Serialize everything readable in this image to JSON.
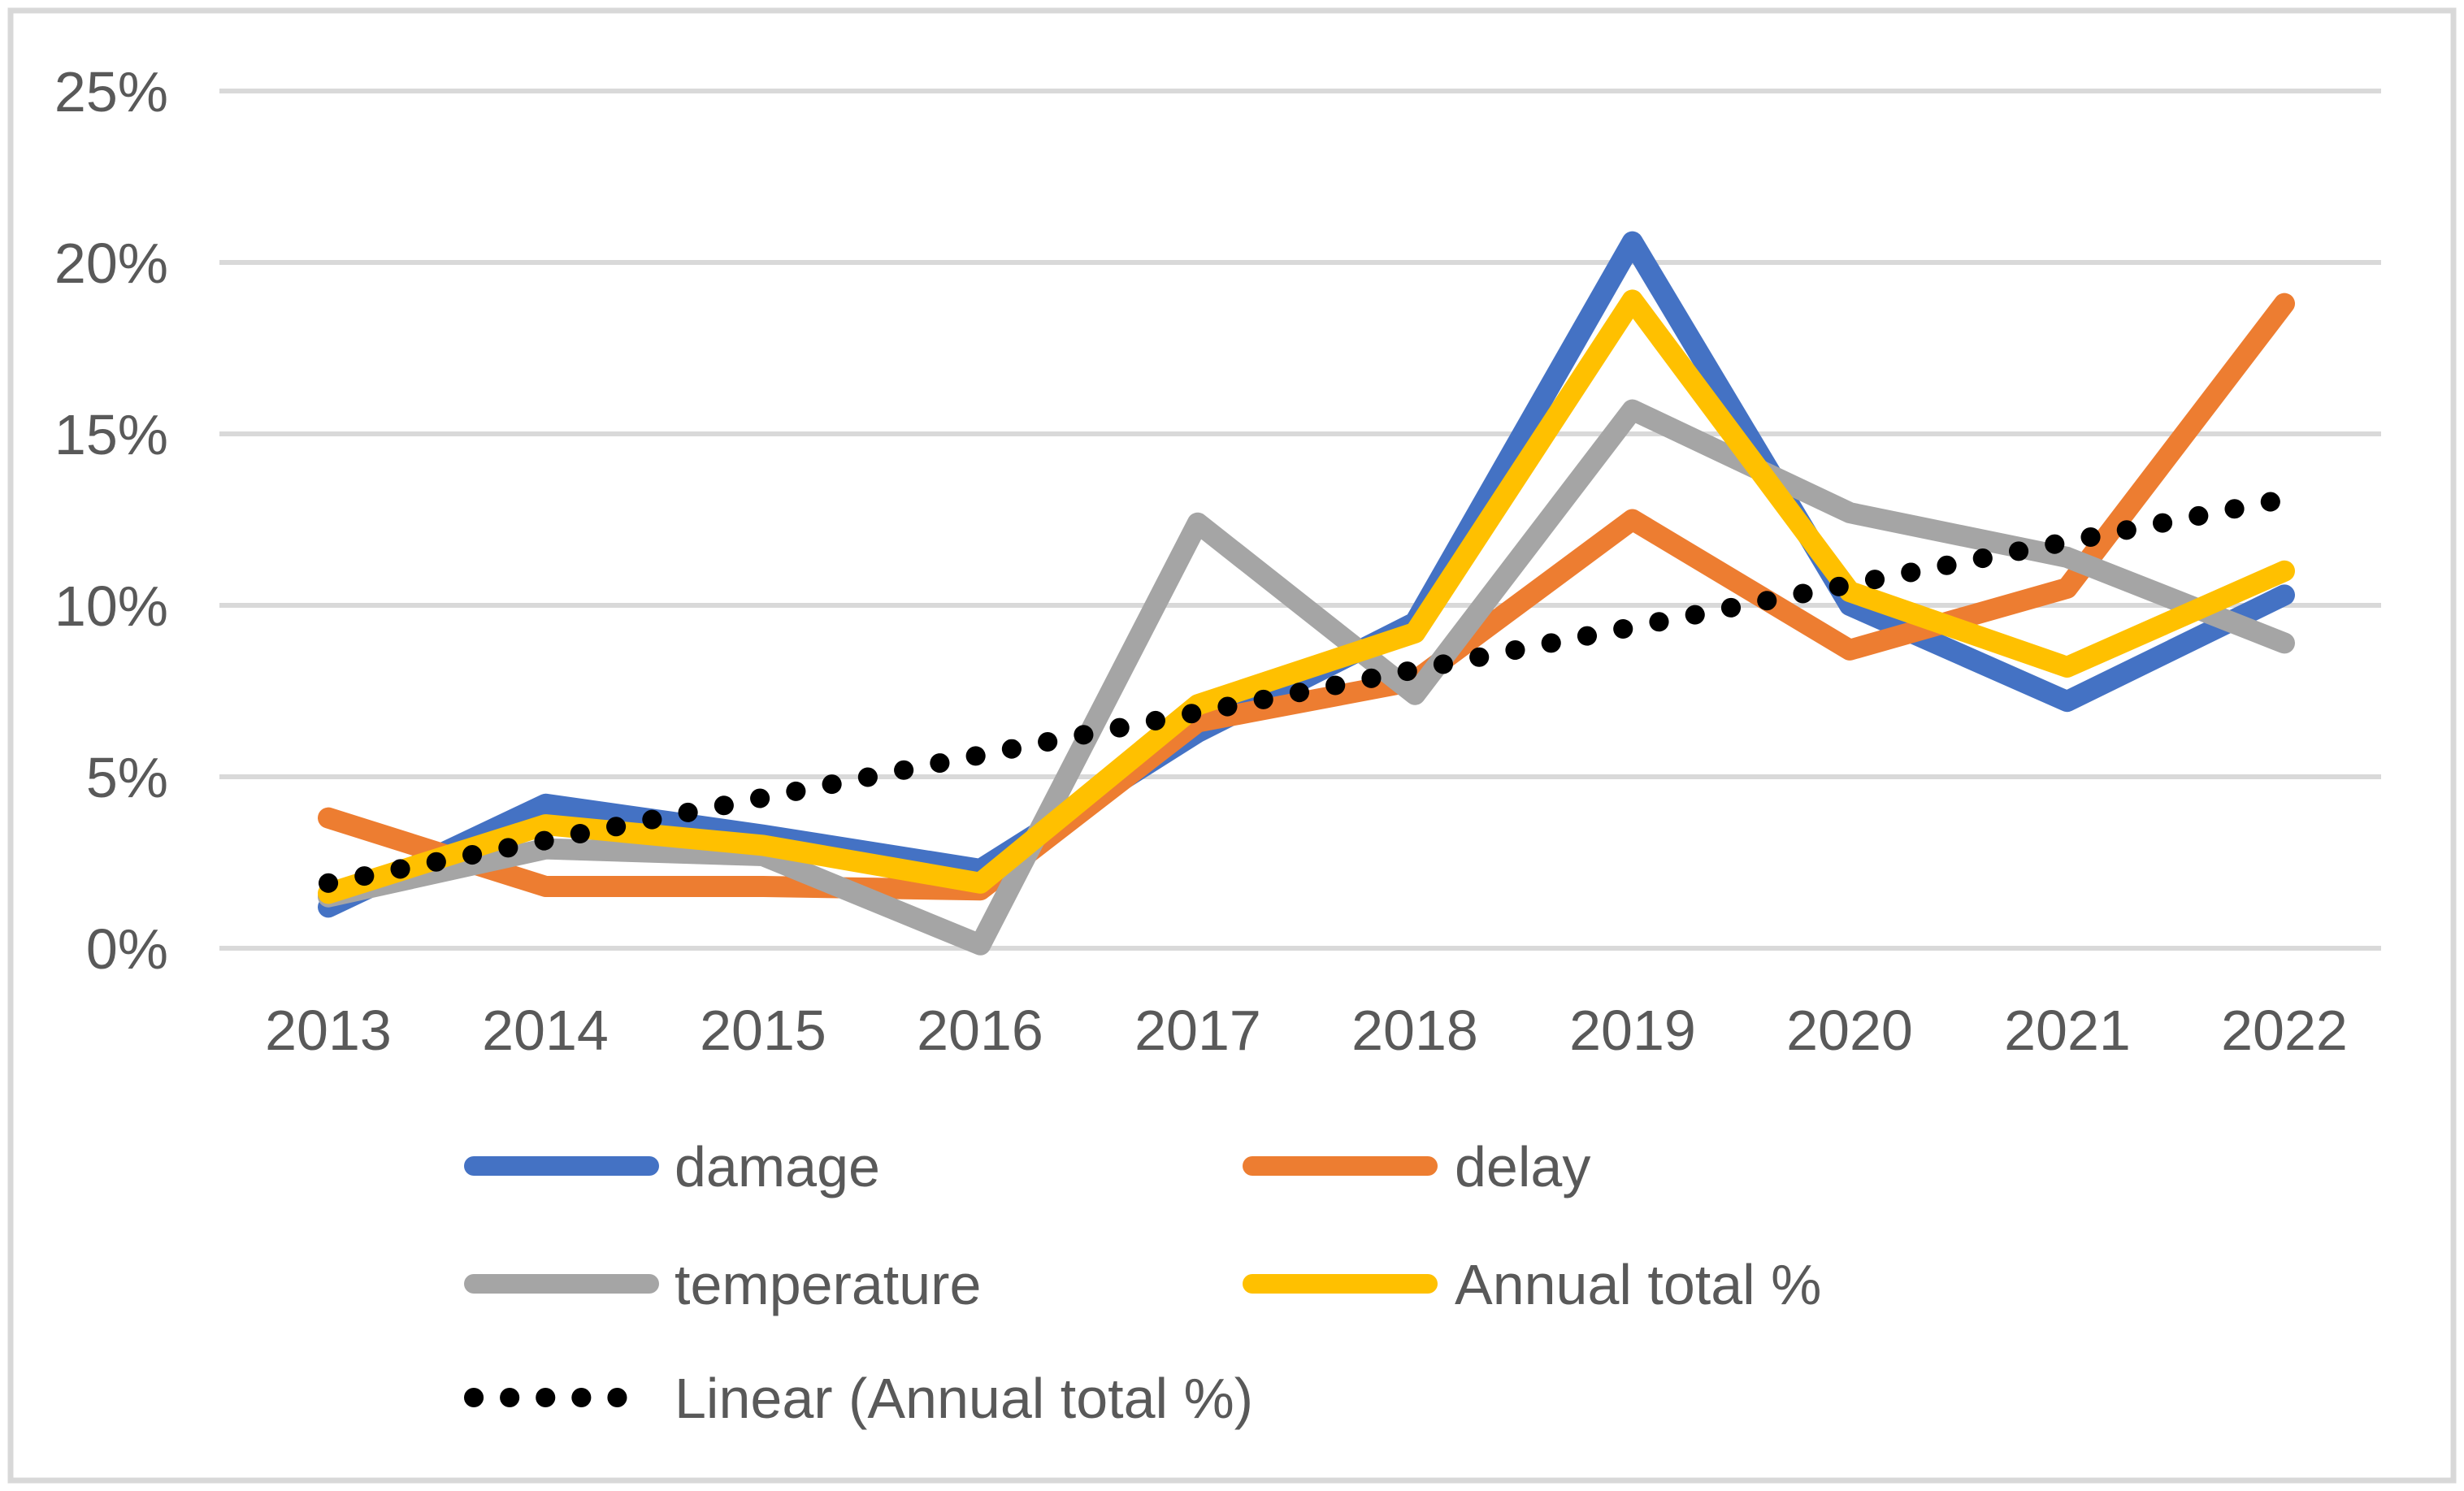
{
  "chart_data": {
    "type": "line",
    "title": "",
    "xlabel": "",
    "ylabel": "",
    "categories": [
      "2013",
      "2014",
      "2015",
      "2016",
      "2017",
      "2018",
      "2019",
      "2020",
      "2021",
      "2022"
    ],
    "y_ticks": [
      0,
      5,
      10,
      15,
      20,
      25
    ],
    "y_tick_labels": [
      "0%",
      "5%",
      "10%",
      "15%",
      "20%",
      "25%"
    ],
    "ylim": [
      0,
      25
    ],
    "grid": true,
    "legend_position": "bottom-left",
    "series": [
      {
        "name": "damage",
        "color": "#4472C4",
        "values": [
          1.2,
          4.2,
          3.3,
          2.3,
          6.3,
          9.5,
          20.6,
          10.0,
          7.2,
          10.3
        ]
      },
      {
        "name": "delay",
        "color": "#ED7D31",
        "values": [
          3.8,
          1.8,
          1.8,
          1.7,
          6.6,
          7.8,
          12.5,
          8.7,
          10.5,
          18.8
        ]
      },
      {
        "name": "temperature",
        "color": "#A5A5A5",
        "values": [
          1.5,
          2.9,
          2.7,
          0.1,
          12.4,
          7.4,
          15.7,
          12.7,
          11.4,
          8.9
        ]
      },
      {
        "name": "Annual total %",
        "color": "#FFC000",
        "values": [
          1.6,
          3.6,
          3.0,
          1.9,
          7.1,
          9.2,
          18.9,
          10.4,
          8.2,
          11.0
        ]
      }
    ],
    "trendline": {
      "label": "Linear (Annual total %)",
      "color": "#000000",
      "style": "dotted",
      "start_value": 1.9,
      "end_value": 13.1
    },
    "colors": {
      "gridline": "#D9D9D9",
      "border": "#D8D8D8",
      "axis_text": "#595959",
      "background": "#FFFFFF"
    }
  }
}
